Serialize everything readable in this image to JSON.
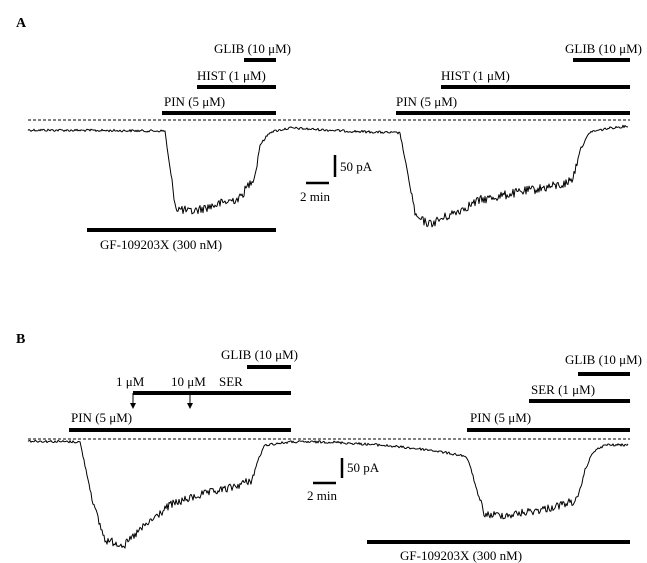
{
  "panel_a": {
    "letter": "A",
    "glib_1": "GLIB (10 μM)",
    "hist_1": "HIST (1 μM)",
    "pin_1": "PIN (5 μM)",
    "glib_2": "GLIB (10 μM)",
    "hist_2": "HIST (1 μM)",
    "pin_2": "PIN (5 μM)",
    "scale_current": "50 pA",
    "scale_time": "2 min",
    "gf": "GF-109203X (300 nM)"
  },
  "panel_b": {
    "letter": "B",
    "glib_1": "GLIB (10 μM)",
    "ser_1uM": "1 μM",
    "ser_10uM": "10 μM",
    "ser_label": "SER",
    "pin_1": "PIN (5 μM)",
    "glib_2": "GLIB (10 μM)",
    "ser_2": "SER (1 μM)",
    "pin_2": "PIN (5 μM)",
    "scale_current": "50 pA",
    "scale_time": "2 min",
    "gf": "GF-109203X (300 nM)"
  }
}
